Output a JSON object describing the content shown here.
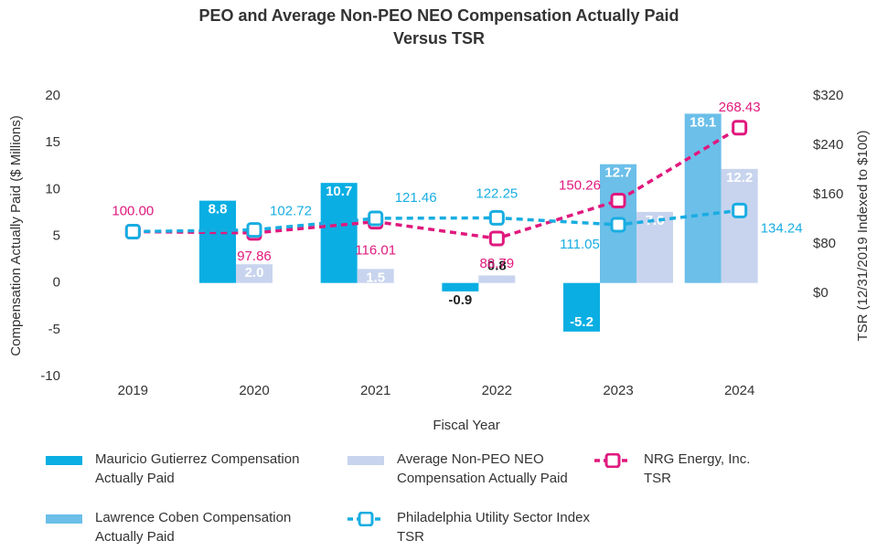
{
  "chart_data": {
    "type": "bar",
    "title": [
      "PEO and Average Non-PEO NEO Compensation Actually Paid",
      "Versus TSR"
    ],
    "x_label": "Fiscal Year",
    "y_label": "Compensation Actually Paid ($ Millions)",
    "y2_label": "TSR (12/31/2019 Indexed to $100)",
    "categories": [
      "2019",
      "2020",
      "2021",
      "2022",
      "2023",
      "2024"
    ],
    "ylim": [
      -10,
      20
    ],
    "yticks": [
      -10,
      -5,
      0,
      5,
      10,
      15,
      20
    ],
    "y2lim": [
      -135,
      320
    ],
    "y2ticks": [
      {
        "value": 0,
        "label": "$0"
      },
      {
        "value": 80,
        "label": "$80"
      },
      {
        "value": 160,
        "label": "$160"
      },
      {
        "value": 240,
        "label": "$240"
      },
      {
        "value": 320,
        "label": "$320"
      }
    ],
    "grid": false,
    "series": [
      {
        "name": "Mauricio Gutierrez Compensation Actually Paid",
        "type": "bar",
        "color": "#0aaee3",
        "values": [
          null,
          8.8,
          10.7,
          -0.9,
          -5.2,
          null
        ],
        "value_labels": [
          null,
          "8.8",
          "10.7",
          "-0.9",
          "-5.2",
          null
        ]
      },
      {
        "name": "Lawrence Coben Compensation Actually Paid",
        "type": "bar",
        "color": "#6bbfe9",
        "values": [
          null,
          null,
          null,
          null,
          12.7,
          18.1
        ],
        "value_labels": [
          null,
          null,
          null,
          null,
          "12.7",
          "18.1"
        ]
      },
      {
        "name": "Average Non-PEO NEO Compensation Actually Paid",
        "type": "bar",
        "color": "#c8d4ee",
        "values": [
          null,
          2.0,
          1.5,
          0.8,
          7.6,
          12.2
        ],
        "value_labels": [
          null,
          "2.0",
          "1.5",
          "0.8",
          "7.6",
          "12.2"
        ]
      },
      {
        "name": "NRG Energy, Inc. TSR",
        "type": "line",
        "axis": "y2",
        "color": "#e0197d",
        "values": [
          100.0,
          97.86,
          116.01,
          88.79,
          150.26,
          268.43
        ],
        "value_labels": [
          "100.00",
          "97.86",
          "116.01",
          "88.79",
          "150.26",
          "268.43"
        ]
      },
      {
        "name": "Philadelphia Utility Sector Index TSR",
        "type": "line",
        "axis": "y2",
        "color": "#18ade2",
        "values": [
          100,
          102.72,
          121.46,
          122.25,
          111.05,
          134.24
        ],
        "value_labels": [
          null,
          "102.72",
          "121.46",
          "122.25",
          "111.05",
          "134.24"
        ]
      }
    ]
  }
}
